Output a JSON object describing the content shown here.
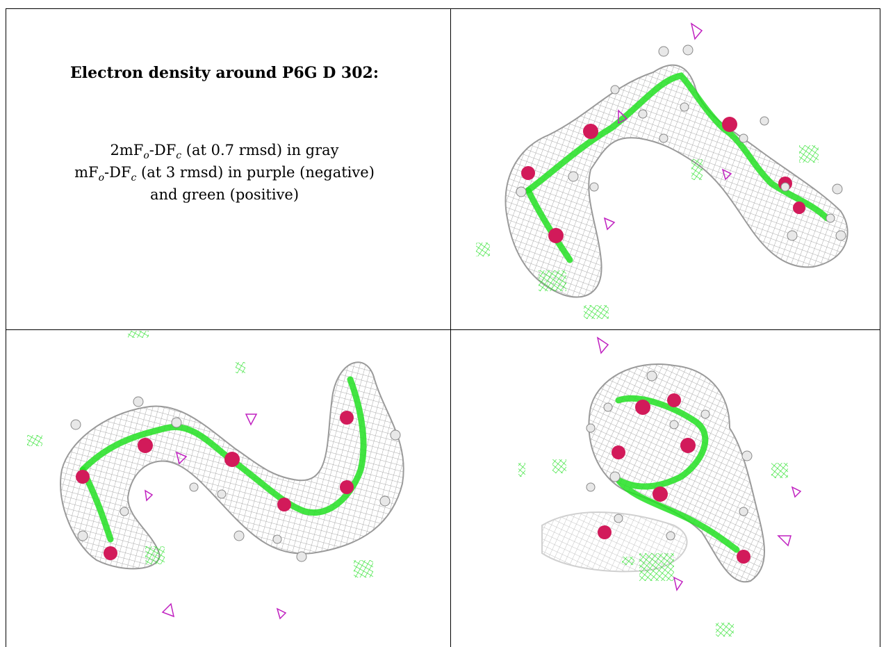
{
  "caption": {
    "title": "Electron density around P6G D 302:",
    "line1_prefix": "2mF",
    "line1_sub1": "o",
    "line1_mid": "-DF",
    "line1_sub2": "c",
    "line1_suffix": " (at 0.7 rmsd) in gray",
    "line2_prefix": "mF",
    "line2_sub1": "o",
    "line2_mid": "-DF",
    "line2_sub2": "c",
    "line2_suffix": " (at 3 rmsd) in purple (negative)",
    "line3": "and green (positive)"
  },
  "colors": {
    "mesh_gray": "#a8a8a8",
    "mesh_green": "#22e022",
    "mesh_purple": "#c020c0",
    "oxygen_red": "#d21a5a",
    "hydrogen_white": "#e8e8e8"
  }
}
